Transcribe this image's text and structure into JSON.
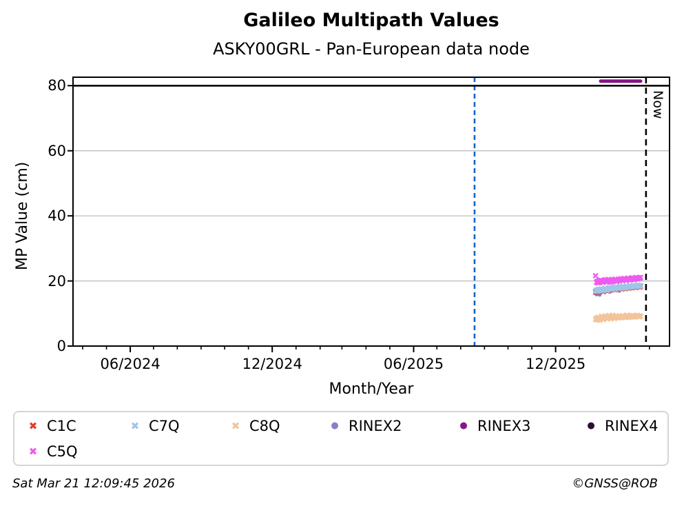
{
  "title": "Galileo Multipath Values",
  "subtitle": "ASKY00GRL - Pan-European data node",
  "footer": {
    "timestamp": "Sat Mar 21 12:09:45 2026",
    "credit": "©GNSS@ROB"
  },
  "legend": {
    "items": [
      {
        "label": "C1C"
      },
      {
        "label": "C7Q"
      },
      {
        "label": "C8Q"
      },
      {
        "label": "RINEX2"
      },
      {
        "label": "RINEX3"
      },
      {
        "label": "RINEX4"
      },
      {
        "label": "C5Q"
      }
    ]
  },
  "chart_data": {
    "type": "scatter",
    "title": "Galileo Multipath Values",
    "subtitle": "ASKY00GRL - Pan-European data node",
    "xlabel": "Month/Year",
    "ylabel": "MP Value (cm)",
    "now_label": "Now",
    "grid": "horizontal-only",
    "grid_color": "#bdbdbd",
    "x_domain_decimal_year": [
      2024.213,
      2026.318
    ],
    "ylim": [
      0,
      82.6
    ],
    "y_ticks": [
      {
        "v": 0,
        "label": "0"
      },
      {
        "v": 20,
        "label": "20"
      },
      {
        "v": 40,
        "label": "40"
      },
      {
        "v": 60,
        "label": "60"
      },
      {
        "v": 80,
        "label": "80"
      }
    ],
    "x_major_ticks": [
      {
        "v": 2024.415,
        "label": "06/2024"
      },
      {
        "v": 2024.916,
        "label": "12/2024"
      },
      {
        "v": 2025.415,
        "label": "06/2025"
      },
      {
        "v": 2025.916,
        "label": "12/2025"
      }
    ],
    "x_minor_ticks": [
      2024.247,
      2024.331,
      2024.415,
      2024.497,
      2024.581,
      2024.665,
      2024.748,
      2024.832,
      2024.916,
      2025.0,
      2025.085,
      2025.162,
      2025.247,
      2025.331,
      2025.415,
      2025.497,
      2025.581,
      2025.665,
      2025.748,
      2025.832,
      2025.916,
      2026.0,
      2026.085,
      2026.162,
      2026.247
    ],
    "grid_y": [
      20,
      40,
      60,
      80
    ],
    "hline": {
      "y": 80,
      "color": "#000000",
      "width": 2.6
    },
    "vlines": [
      {
        "name": "blue-dashed-marker",
        "x": 2025.63,
        "color": "#1464c8",
        "dash": "7,5",
        "width": 2.6
      },
      {
        "name": "now-line",
        "x": 2026.235,
        "color": "#000000",
        "dash": "9,6",
        "width": 2.6,
        "label": "Now"
      }
    ],
    "series": [
      {
        "name": "C1C",
        "marker": "x",
        "color": "#e8392b",
        "x_start": 2026.057,
        "x_step": 0.003,
        "y": [
          16.6,
          17.0,
          16.5,
          17.2,
          16.8,
          17.3,
          16.9,
          17.4,
          17.0,
          16.7,
          17.3,
          17.6,
          17.1,
          17.4,
          16.9,
          17.5,
          17.8,
          17.2,
          17.6,
          17.3,
          17.9,
          17.4,
          17.7,
          17.3,
          18.0,
          17.6,
          17.8,
          17.4,
          18.1,
          17.7,
          17.9,
          17.5,
          18.2,
          17.8,
          18.0,
          17.6,
          18.3,
          17.9,
          18.1,
          17.8,
          18.4,
          18.0,
          18.2,
          17.9,
          18.5,
          18.1,
          18.3,
          18.0,
          18.4,
          18.2,
          18.6,
          18.3,
          18.1,
          18.4
        ]
      },
      {
        "name": "C7Q",
        "marker": "x",
        "color": "#9fc5e8",
        "x_start": 2026.057,
        "x_step": 0.003,
        "y": [
          16.9,
          17.2,
          16.8,
          17.4,
          17.0,
          17.5,
          17.1,
          17.6,
          17.2,
          17.0,
          17.5,
          17.8,
          17.3,
          17.6,
          17.1,
          17.7,
          18.0,
          17.4,
          17.8,
          17.5,
          18.1,
          17.6,
          17.9,
          17.5,
          18.2,
          17.8,
          18.0,
          17.6,
          18.3,
          17.9,
          18.1,
          17.7,
          18.4,
          18.0,
          18.2,
          17.8,
          18.5,
          18.1,
          18.3,
          18.0,
          18.6,
          18.2,
          18.4,
          18.1,
          18.7,
          18.3,
          18.5,
          18.2,
          18.6,
          18.4,
          18.8,
          18.5,
          18.3,
          18.6
        ]
      },
      {
        "name": "C8Q",
        "marker": "x",
        "color": "#f2c49b",
        "x_start": 2026.057,
        "x_step": 0.003,
        "y": [
          8.2,
          8.6,
          8.0,
          8.9,
          8.4,
          7.9,
          8.7,
          9.2,
          8.5,
          8.1,
          8.8,
          9.3,
          8.6,
          9.0,
          8.4,
          8.9,
          9.4,
          8.7,
          8.3,
          9.0,
          9.5,
          8.8,
          8.5,
          9.1,
          8.7,
          9.2,
          8.9,
          8.6,
          9.3,
          8.8,
          9.0,
          8.7,
          9.4,
          9.0,
          8.8,
          9.2,
          8.9,
          9.5,
          9.0,
          8.8,
          9.3,
          9.1,
          8.9,
          9.4,
          9.0,
          9.2,
          8.9,
          9.3,
          9.1,
          9.5,
          9.2,
          9.0,
          9.3,
          9.1
        ]
      },
      {
        "name": "RINEX2",
        "marker": "circle",
        "color": "#8583c5",
        "points": [
          [
            2026.057,
            16.1
          ],
          [
            2026.06,
            15.8
          ],
          [
            2026.063,
            16.3
          ],
          [
            2026.066,
            15.9
          ],
          [
            2026.069,
            16.2
          ],
          [
            2026.072,
            15.7
          ],
          [
            2026.108,
            16.6
          ],
          [
            2026.141,
            16.9
          ]
        ]
      },
      {
        "name": "RINEX3",
        "marker": "circle",
        "color": "#871687",
        "x_start": 2026.075,
        "x_step": 0.003,
        "y": [
          81.4,
          81.4,
          81.4,
          81.4,
          81.4,
          81.4,
          81.4,
          81.4,
          81.4,
          81.4,
          81.4,
          81.4,
          81.4,
          81.4,
          81.4,
          81.4,
          81.4,
          81.4,
          81.4,
          81.4,
          81.4,
          81.4,
          81.4,
          81.4,
          81.4,
          81.4,
          81.4,
          81.4,
          81.4,
          81.4,
          81.4,
          81.4,
          81.4,
          81.4,
          81.4,
          81.4,
          81.4,
          81.4,
          81.4,
          81.4,
          81.4,
          81.4,
          81.4,
          81.4,
          81.4,
          81.4,
          81.4,
          81.4
        ]
      },
      {
        "name": "RINEX4",
        "marker": "circle",
        "color": "#2d0e33",
        "x_start": 2026.075,
        "x_step": 0.003,
        "y": []
      },
      {
        "name": "C5Q",
        "marker": "x",
        "color": "#ef5bef",
        "x_start": 2026.057,
        "x_step": 0.003,
        "y": [
          21.6,
          19.6,
          19.9,
          19.4,
          20.1,
          19.7,
          20.3,
          19.8,
          20.0,
          19.5,
          20.2,
          19.9,
          20.4,
          19.7,
          20.1,
          20.5,
          19.8,
          20.2,
          19.6,
          20.0,
          20.4,
          19.9,
          20.3,
          20.6,
          20.1,
          19.8,
          20.2,
          20.5,
          20.0,
          20.4,
          20.7,
          20.2,
          20.6,
          20.3,
          20.8,
          20.4,
          20.1,
          20.5,
          20.9,
          20.4,
          20.7,
          20.3,
          20.6,
          21.0,
          20.5,
          20.8,
          20.4,
          20.7,
          21.1,
          20.6,
          20.9,
          21.0,
          20.8,
          21.1
        ]
      }
    ],
    "legend_position": "bottom",
    "axis_ranges_note": "x: ~mid-Mar-2024 to ~late-Apr-2026; y: 0 to ~82.6 cm"
  }
}
